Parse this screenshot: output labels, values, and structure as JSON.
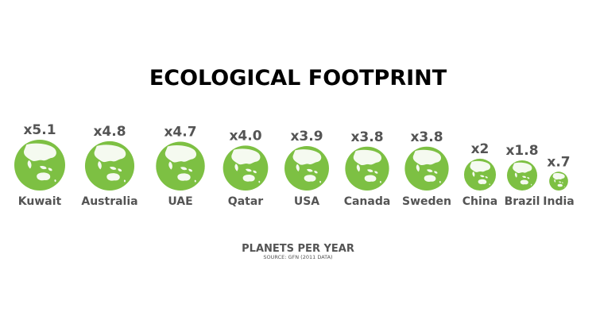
{
  "chart_data": {
    "type": "bubble",
    "title": "ECOLOGICAL FOOTPRINT",
    "subtitle": "PLANETS PER YEAR",
    "source": "SOURCE: GFN (2011 DATA)",
    "categories": [
      "Kuwait",
      "Australia",
      "UAE",
      "Qatar",
      "USA",
      "Canada",
      "Sweden",
      "China",
      "Brazil",
      "India"
    ],
    "values": [
      5.1,
      4.8,
      4.7,
      4.0,
      3.9,
      3.8,
      3.8,
      2,
      1.8,
      0.7
    ],
    "value_labels": [
      "x5.1",
      "x4.8",
      "x4.7",
      "x4.0",
      "x3.9",
      "x3.8",
      "x3.8",
      "x2",
      "x1.8",
      "x.7"
    ],
    "marker": "globe-icon",
    "colors": {
      "globe": "#7dc043",
      "land": "#ffffff",
      "text": "#545454",
      "title": "#000000"
    }
  }
}
